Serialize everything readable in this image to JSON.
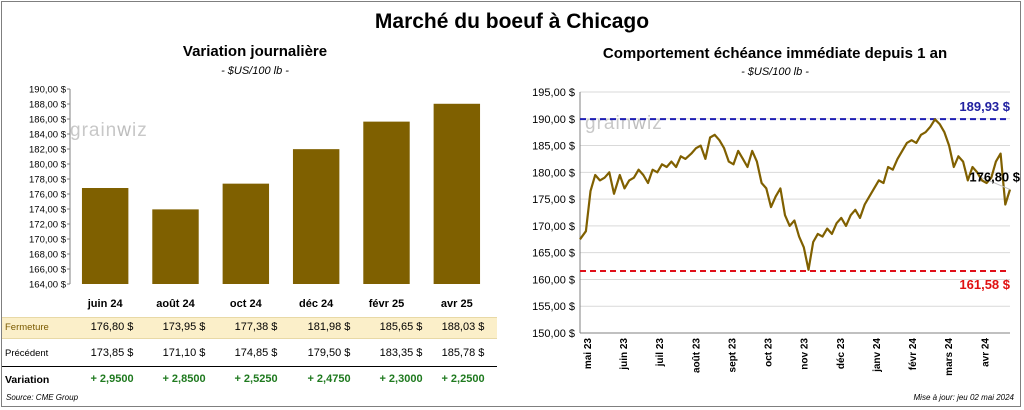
{
  "title": "Marché du boeuf à Chicago",
  "left_panel": {
    "title": "Variation journalière",
    "unit": "- $US/100 lb -",
    "watermark": "grainwiz"
  },
  "right_panel": {
    "title": "Comportement échéance immédiate depuis 1 an",
    "unit": "- $US/100 lb -",
    "watermark": "grainwiz"
  },
  "table": {
    "rows": [
      {
        "label": "Fermeture",
        "cells": [
          "176,80  $",
          "173,95  $",
          "177,38  $",
          "181,98  $",
          "185,65  $",
          "188,03  $"
        ]
      },
      {
        "label": "Précédent",
        "cells": [
          "173,85  $",
          "171,10  $",
          "174,85  $",
          "179,50  $",
          "183,35  $",
          "185,78  $"
        ]
      },
      {
        "label": "Variation",
        "cells": [
          "+ 2,9500",
          "+ 2,8500",
          "+ 2,5250",
          "+ 2,4750",
          "+ 2,3000",
          "+ 2,2500"
        ]
      }
    ]
  },
  "footer": {
    "source": "Source: CME Group",
    "updated": "Mise à jour: jeu 02 mai 2024"
  },
  "colors": {
    "bar": "#7f6000",
    "line": "#806000",
    "high_line": "#1f1fb4",
    "low_line": "#e0101a",
    "high_label": "#2020a0",
    "low_label": "#e01010"
  },
  "chart_data": [
    {
      "type": "bar",
      "title": "Variation journalière",
      "categories": [
        "juin 24",
        "août 24",
        "oct 24",
        "déc 24",
        "févr 25",
        "avr 25"
      ],
      "values": [
        176.8,
        173.95,
        177.38,
        181.98,
        185.65,
        188.03
      ],
      "ylim": [
        164,
        190
      ],
      "y_ticks": [
        "164,00 $",
        "166,00 $",
        "168,00 $",
        "170,00 $",
        "172,00 $",
        "174,00 $",
        "176,00 $",
        "178,00 $",
        "180,00 $",
        "182,00 $",
        "184,00 $",
        "186,00 $",
        "188,00 $",
        "190,00 $"
      ],
      "grid": false
    },
    {
      "type": "line",
      "title": "Comportement échéance immédiate depuis 1 an",
      "ylim": [
        150,
        195
      ],
      "y_ticks": [
        "150,00 $",
        "155,00 $",
        "160,00 $",
        "165,00 $",
        "170,00 $",
        "175,00 $",
        "180,00 $",
        "185,00 $",
        "190,00 $",
        "195,00 $"
      ],
      "x_ticks": [
        "mai 23",
        "juin 23",
        "juil 23",
        "août 23",
        "sept 23",
        "oct 23",
        "nov 23",
        "déc 23",
        "janv 24",
        "févr 24",
        "mars 24",
        "avr 24"
      ],
      "x_range": [
        "2023-05-01",
        "2024-05-02"
      ],
      "reference_lines": [
        {
          "value": 189.93,
          "label": "189,93 $",
          "color": "#1f1fb4",
          "style": "dashed"
        },
        {
          "value": 161.58,
          "label": "161,58 $",
          "color": "#e0101a",
          "style": "dashed"
        }
      ],
      "last_value_label": "176,80 $",
      "grid": true,
      "series": [
        {
          "dates": [
            "2023-05-01",
            "2023-05-06",
            "2023-05-10",
            "2023-05-14",
            "2023-05-18",
            "2023-05-22",
            "2023-05-26",
            "2023-05-30",
            "2023-06-04",
            "2023-06-08",
            "2023-06-12",
            "2023-06-16",
            "2023-06-20",
            "2023-06-24",
            "2023-06-28",
            "2023-07-02",
            "2023-07-06",
            "2023-07-10",
            "2023-07-14",
            "2023-07-18",
            "2023-07-22",
            "2023-07-26",
            "2023-07-30",
            "2023-08-04",
            "2023-08-08",
            "2023-08-12",
            "2023-08-16",
            "2023-08-20",
            "2023-08-24",
            "2023-08-28",
            "2023-09-01",
            "2023-09-05",
            "2023-09-09",
            "2023-09-13",
            "2023-09-17",
            "2023-09-21",
            "2023-09-25",
            "2023-09-29",
            "2023-10-03",
            "2023-10-07",
            "2023-10-11",
            "2023-10-15",
            "2023-10-19",
            "2023-10-23",
            "2023-10-27",
            "2023-10-31",
            "2023-11-04",
            "2023-11-08",
            "2023-11-12",
            "2023-11-16",
            "2023-11-20",
            "2023-11-24",
            "2023-11-28",
            "2023-12-02",
            "2023-12-06",
            "2023-12-10",
            "2023-12-14",
            "2023-12-18",
            "2023-12-22",
            "2023-12-26",
            "2023-12-30",
            "2024-01-03",
            "2024-01-07",
            "2024-01-11",
            "2024-01-15",
            "2024-01-19",
            "2024-01-23",
            "2024-01-27",
            "2024-01-31",
            "2024-02-04",
            "2024-02-08",
            "2024-02-12",
            "2024-02-16",
            "2024-02-20",
            "2024-02-24",
            "2024-02-28",
            "2024-03-03",
            "2024-03-07",
            "2024-03-11",
            "2024-03-15",
            "2024-03-19",
            "2024-03-23",
            "2024-03-27",
            "2024-03-31",
            "2024-04-04",
            "2024-04-08",
            "2024-04-12",
            "2024-04-16",
            "2024-04-20",
            "2024-04-24",
            "2024-04-28",
            "2024-05-02"
          ],
          "values": [
            167.5,
            169.0,
            176.5,
            179.5,
            178.5,
            179.0,
            180.0,
            176.0,
            179.5,
            177.0,
            178.5,
            179.0,
            180.5,
            179.5,
            178.0,
            180.5,
            180.0,
            181.5,
            181.0,
            182.0,
            181.0,
            183.0,
            182.5,
            183.5,
            184.5,
            185.0,
            182.5,
            186.5,
            187.0,
            186.0,
            184.5,
            182.0,
            181.5,
            184.0,
            182.5,
            181.0,
            184.0,
            182.0,
            178.0,
            177.0,
            173.5,
            175.5,
            177.0,
            172.0,
            170.0,
            171.0,
            168.0,
            166.0,
            161.8,
            167.0,
            168.5,
            168.0,
            169.5,
            168.5,
            170.5,
            171.5,
            170.0,
            172.0,
            173.0,
            171.5,
            174.0,
            175.5,
            177.0,
            178.5,
            178.0,
            181.0,
            180.5,
            182.5,
            184.0,
            185.5,
            186.0,
            185.5,
            187.0,
            187.5,
            188.5,
            189.9,
            189.0,
            187.5,
            185.0,
            181.0,
            183.0,
            182.0,
            178.5,
            181.0,
            180.0,
            178.5,
            178.0,
            179.0,
            182.0,
            183.5,
            174.0,
            176.8
          ]
        }
      ]
    }
  ]
}
